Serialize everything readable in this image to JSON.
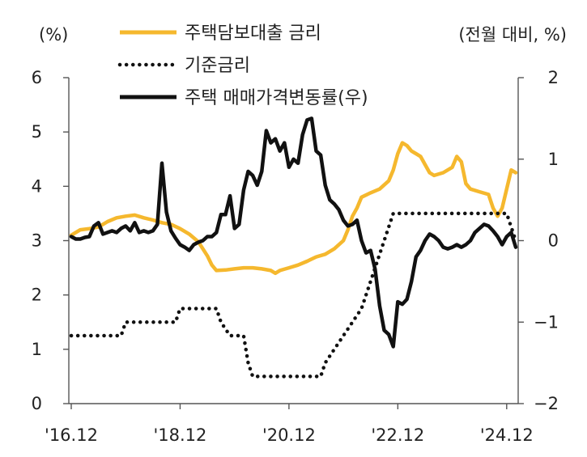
{
  "chart_data": {
    "type": "line",
    "left_axis_unit": "(%)",
    "right_axis_unit": "(전월 대비, %)",
    "left_ylim": [
      0,
      6
    ],
    "left_yticks": [
      0,
      1,
      2,
      3,
      4,
      5,
      6
    ],
    "right_ylim": [
      -2,
      2
    ],
    "right_yticks": [
      -2,
      -1,
      0,
      1,
      2
    ],
    "x_ticks": [
      {
        "label": "'16.12",
        "t": 0
      },
      {
        "label": "'18.12",
        "t": 24
      },
      {
        "label": "'20.12",
        "t": 48
      },
      {
        "label": "'22.12",
        "t": 72
      },
      {
        "label": "'24.12",
        "t": 96
      }
    ],
    "colors": {
      "mortgage": "#f5b82e",
      "base": "#111111",
      "housing": "#111111",
      "axis": "#555555"
    },
    "series": [
      {
        "name": "주택담보대출 금리",
        "axis": "left",
        "style": "solid-gold",
        "points": [
          [
            0,
            3.1
          ],
          [
            2,
            3.2
          ],
          [
            4,
            3.22
          ],
          [
            6,
            3.25
          ],
          [
            8,
            3.35
          ],
          [
            10,
            3.42
          ],
          [
            12,
            3.45
          ],
          [
            14,
            3.47
          ],
          [
            16,
            3.42
          ],
          [
            18,
            3.38
          ],
          [
            20,
            3.33
          ],
          [
            22,
            3.3
          ],
          [
            24,
            3.22
          ],
          [
            26,
            3.12
          ],
          [
            28,
            2.98
          ],
          [
            29,
            2.85
          ],
          [
            30,
            2.72
          ],
          [
            31,
            2.55
          ],
          [
            32,
            2.45
          ],
          [
            34,
            2.46
          ],
          [
            36,
            2.48
          ],
          [
            38,
            2.5
          ],
          [
            40,
            2.5
          ],
          [
            42,
            2.48
          ],
          [
            44,
            2.45
          ],
          [
            45,
            2.4
          ],
          [
            46,
            2.45
          ],
          [
            48,
            2.5
          ],
          [
            50,
            2.55
          ],
          [
            52,
            2.62
          ],
          [
            54,
            2.7
          ],
          [
            56,
            2.75
          ],
          [
            58,
            2.85
          ],
          [
            60,
            3.0
          ],
          [
            61,
            3.2
          ],
          [
            62,
            3.45
          ],
          [
            63,
            3.6
          ],
          [
            64,
            3.8
          ],
          [
            66,
            3.88
          ],
          [
            68,
            3.95
          ],
          [
            70,
            4.1
          ],
          [
            71,
            4.3
          ],
          [
            72,
            4.6
          ],
          [
            73,
            4.8
          ],
          [
            74,
            4.75
          ],
          [
            75,
            4.65
          ],
          [
            76,
            4.6
          ],
          [
            77,
            4.55
          ],
          [
            78,
            4.4
          ],
          [
            79,
            4.25
          ],
          [
            80,
            4.2
          ],
          [
            82,
            4.25
          ],
          [
            84,
            4.35
          ],
          [
            85,
            4.55
          ],
          [
            86,
            4.45
          ],
          [
            87,
            4.05
          ],
          [
            88,
            3.95
          ],
          [
            90,
            3.9
          ],
          [
            92,
            3.85
          ],
          [
            93,
            3.6
          ],
          [
            94,
            3.45
          ],
          [
            95,
            3.6
          ],
          [
            96,
            3.95
          ],
          [
            97,
            4.3
          ],
          [
            98,
            4.25
          ]
        ]
      },
      {
        "name": "기준금리",
        "axis": "left",
        "style": "dotted-black",
        "points": [
          [
            0,
            1.25
          ],
          [
            11,
            1.25
          ],
          [
            12,
            1.5
          ],
          [
            23,
            1.5
          ],
          [
            24,
            1.75
          ],
          [
            32,
            1.75
          ],
          [
            33,
            1.5
          ],
          [
            35,
            1.25
          ],
          [
            38,
            1.25
          ],
          [
            39,
            0.75
          ],
          [
            40,
            0.5
          ],
          [
            55,
            0.5
          ],
          [
            56,
            0.75
          ],
          [
            58,
            1.0
          ],
          [
            60,
            1.25
          ],
          [
            62,
            1.5
          ],
          [
            64,
            1.75
          ],
          [
            66,
            2.25
          ],
          [
            67,
            2.5
          ],
          [
            68,
            2.75
          ],
          [
            69,
            3.0
          ],
          [
            70,
            3.25
          ],
          [
            71,
            3.5
          ],
          [
            96,
            3.5
          ],
          [
            97,
            3.25
          ],
          [
            98,
            3.0
          ]
        ]
      },
      {
        "name": "주택 매매가격변동률(우)",
        "axis": "right",
        "style": "solid-black",
        "points": [
          [
            0,
            0.05
          ],
          [
            1,
            0.02
          ],
          [
            2,
            0.02
          ],
          [
            3,
            0.04
          ],
          [
            4,
            0.05
          ],
          [
            5,
            0.18
          ],
          [
            6,
            0.22
          ],
          [
            7,
            0.08
          ],
          [
            8,
            0.1
          ],
          [
            9,
            0.12
          ],
          [
            10,
            0.1
          ],
          [
            11,
            0.15
          ],
          [
            12,
            0.18
          ],
          [
            13,
            0.12
          ],
          [
            14,
            0.22
          ],
          [
            15,
            0.1
          ],
          [
            16,
            0.12
          ],
          [
            17,
            0.1
          ],
          [
            18,
            0.12
          ],
          [
            19,
            0.2
          ],
          [
            20,
            0.95
          ],
          [
            21,
            0.35
          ],
          [
            22,
            0.12
          ],
          [
            23,
            0.03
          ],
          [
            24,
            -0.05
          ],
          [
            25,
            -0.08
          ],
          [
            26,
            -0.12
          ],
          [
            27,
            -0.05
          ],
          [
            28,
            -0.02
          ],
          [
            29,
            0.0
          ],
          [
            30,
            0.05
          ],
          [
            31,
            0.05
          ],
          [
            32,
            0.1
          ],
          [
            33,
            0.32
          ],
          [
            34,
            0.32
          ],
          [
            35,
            0.55
          ],
          [
            36,
            0.15
          ],
          [
            37,
            0.2
          ],
          [
            38,
            0.62
          ],
          [
            39,
            0.85
          ],
          [
            40,
            0.8
          ],
          [
            41,
            0.68
          ],
          [
            42,
            0.85
          ],
          [
            43,
            1.35
          ],
          [
            44,
            1.2
          ],
          [
            45,
            1.25
          ],
          [
            46,
            1.1
          ],
          [
            47,
            1.2
          ],
          [
            48,
            0.9
          ],
          [
            49,
            1.0
          ],
          [
            50,
            0.95
          ],
          [
            51,
            1.3
          ],
          [
            52,
            1.48
          ],
          [
            53,
            1.5
          ],
          [
            54,
            1.1
          ],
          [
            55,
            1.05
          ],
          [
            56,
            0.68
          ],
          [
            57,
            0.5
          ],
          [
            58,
            0.45
          ],
          [
            59,
            0.38
          ],
          [
            60,
            0.25
          ],
          [
            61,
            0.18
          ],
          [
            62,
            0.2
          ],
          [
            63,
            0.25
          ],
          [
            64,
            0.0
          ],
          [
            65,
            -0.15
          ],
          [
            66,
            -0.12
          ],
          [
            67,
            -0.35
          ],
          [
            68,
            -0.8
          ],
          [
            69,
            -1.1
          ],
          [
            70,
            -1.15
          ],
          [
            71,
            -1.3
          ],
          [
            72,
            -0.75
          ],
          [
            73,
            -0.78
          ],
          [
            74,
            -0.72
          ],
          [
            75,
            -0.5
          ],
          [
            76,
            -0.2
          ],
          [
            77,
            -0.12
          ],
          [
            78,
            0.0
          ],
          [
            79,
            0.08
          ],
          [
            80,
            0.05
          ],
          [
            81,
            0.0
          ],
          [
            82,
            -0.08
          ],
          [
            83,
            -0.1
          ],
          [
            84,
            -0.08
          ],
          [
            85,
            -0.05
          ],
          [
            86,
            -0.08
          ],
          [
            87,
            -0.05
          ],
          [
            88,
            0.0
          ],
          [
            89,
            0.1
          ],
          [
            90,
            0.15
          ],
          [
            91,
            0.2
          ],
          [
            92,
            0.18
          ],
          [
            93,
            0.12
          ],
          [
            94,
            0.05
          ],
          [
            95,
            -0.05
          ],
          [
            96,
            0.05
          ],
          [
            97,
            0.1
          ],
          [
            98,
            -0.08
          ]
        ]
      }
    ],
    "legend": [
      {
        "label": "주택담보대출 금리",
        "style": "solid-gold"
      },
      {
        "label": "기준금리",
        "style": "dotted-black"
      },
      {
        "label": "주택 매매가격변동률(우)",
        "style": "solid-black"
      }
    ],
    "legend_position": "top-center",
    "grid": false
  }
}
